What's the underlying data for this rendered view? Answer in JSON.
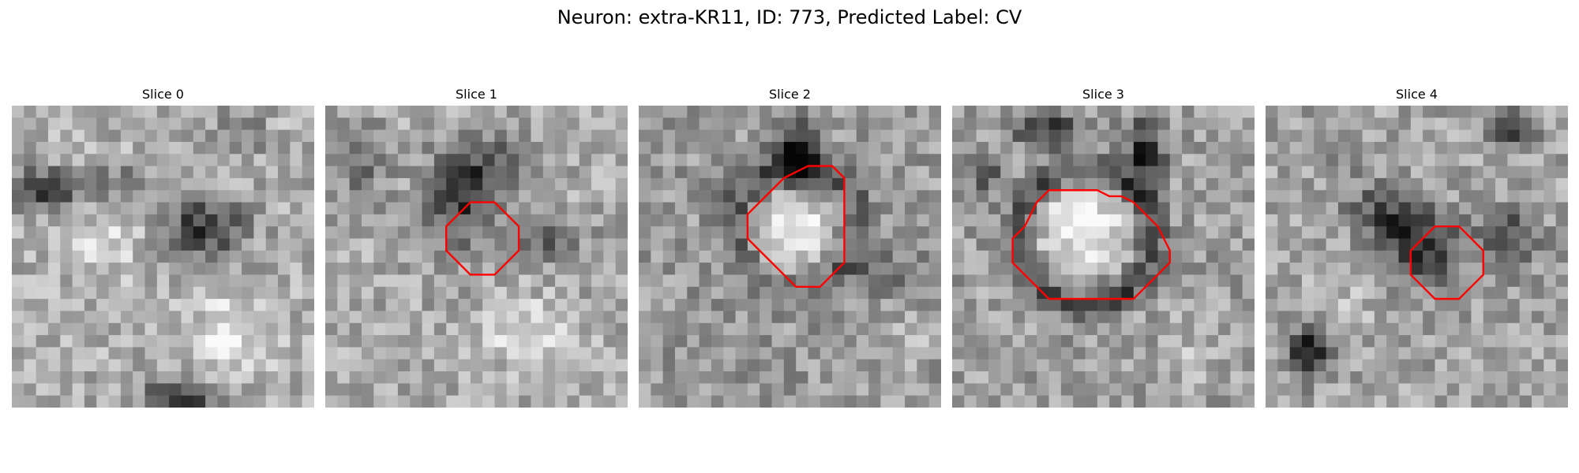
{
  "figure": {
    "title": "Neuron: extra-KR11, ID: 773, Predicted Label: CV"
  },
  "panels": [
    {
      "title": "Slice 0",
      "contour": []
    },
    {
      "title": "Slice 1",
      "contour": [
        [
          12,
          8
        ],
        [
          14,
          8
        ],
        [
          15,
          9
        ],
        [
          16,
          10
        ],
        [
          16,
          12
        ],
        [
          15,
          13
        ],
        [
          14,
          14
        ],
        [
          12,
          14
        ],
        [
          11,
          13
        ],
        [
          10,
          12
        ],
        [
          10,
          10
        ],
        [
          11,
          9
        ]
      ]
    },
    {
      "title": "Slice 2",
      "contour": [
        [
          14,
          5
        ],
        [
          16,
          5
        ],
        [
          17,
          6
        ],
        [
          17,
          13
        ],
        [
          15,
          15
        ],
        [
          13,
          15
        ],
        [
          11,
          13
        ],
        [
          10,
          12
        ],
        [
          9,
          11
        ],
        [
          9,
          9
        ],
        [
          10,
          8
        ],
        [
          11,
          7
        ],
        [
          12,
          6
        ]
      ]
    },
    {
      "title": "Slice 3",
      "contour": [
        [
          11,
          7
        ],
        [
          12,
          7
        ],
        [
          13,
          7.5
        ],
        [
          14,
          7.5
        ],
        [
          15,
          8
        ],
        [
          16,
          9
        ],
        [
          17,
          10
        ],
        [
          18,
          12
        ],
        [
          18,
          13
        ],
        [
          17,
          14
        ],
        [
          15,
          16
        ],
        [
          12,
          16
        ],
        [
          8,
          16
        ],
        [
          6,
          14
        ],
        [
          5,
          13
        ],
        [
          5,
          11
        ],
        [
          6,
          10
        ],
        [
          7,
          8
        ],
        [
          8,
          7
        ]
      ]
    },
    {
      "title": "Slice 4",
      "contour": [
        [
          15,
          10
        ],
        [
          16,
          10
        ],
        [
          17,
          11
        ],
        [
          18,
          12
        ],
        [
          18,
          14
        ],
        [
          17,
          15
        ],
        [
          16,
          16
        ],
        [
          14,
          16
        ],
        [
          13,
          15
        ],
        [
          12,
          14
        ],
        [
          12,
          12
        ],
        [
          13,
          11
        ],
        [
          14,
          10
        ]
      ]
    }
  ],
  "colors": {
    "contour": "#ff0000",
    "background": "#ffffff"
  },
  "image": {
    "grid_size": 25,
    "colormap": "gray"
  }
}
